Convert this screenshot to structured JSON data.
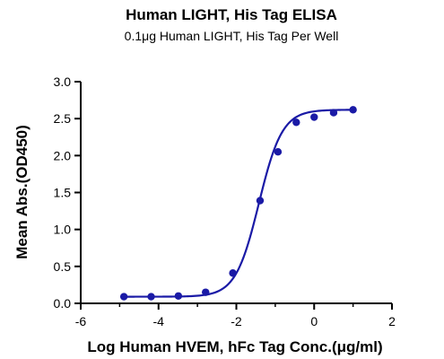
{
  "chart_data": {
    "type": "scatter",
    "title": "Human LIGHT, His Tag ELISA",
    "subtitle": "0.1μg Human LIGHT, His Tag Per Well",
    "xlabel": "Log Human HVEM, hFc Tag Conc.(μg/ml)",
    "ylabel": "Mean Abs.(OD450)",
    "xlim": [
      -6,
      2
    ],
    "ylim": [
      0.0,
      3.0
    ],
    "x_ticks": [
      "-6",
      "-4",
      "-2",
      "0",
      "2"
    ],
    "y_ticks": [
      "0.0",
      "0.5",
      "1.0",
      "1.5",
      "2.0",
      "2.5",
      "3.0"
    ],
    "x_tick_values": [
      -6,
      -4,
      -2,
      0,
      2
    ],
    "y_tick_values": [
      0.0,
      0.5,
      1.0,
      1.5,
      2.0,
      2.5,
      3.0
    ],
    "grid": false,
    "fit": "four-parameter logistic curve",
    "series": [
      {
        "points": [
          {
            "x": -4.89,
            "y": 0.09
          },
          {
            "x": -4.19,
            "y": 0.09
          },
          {
            "x": -3.49,
            "y": 0.1
          },
          {
            "x": -2.79,
            "y": 0.15
          },
          {
            "x": -2.09,
            "y": 0.41
          },
          {
            "x": -1.39,
            "y": 1.39
          },
          {
            "x": -0.93,
            "y": 2.05
          },
          {
            "x": -0.46,
            "y": 2.45
          },
          {
            "x": 0.0,
            "y": 2.52
          },
          {
            "x": 0.5,
            "y": 2.58
          },
          {
            "x": 1.0,
            "y": 2.62
          }
        ]
      }
    ],
    "colors": {
      "series": "#1a1aa6",
      "axis": "#000000"
    }
  }
}
